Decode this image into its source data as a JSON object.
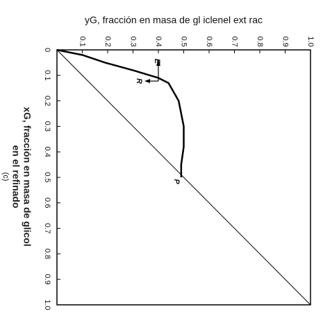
{
  "chart_data": {
    "type": "line",
    "xlabel": "yG, fracción en masa de gl iclenel ext rac",
    "ylabel": [
      "xG, fracción en masa de glicol",
      "en el refinado",
      "(c)"
    ],
    "xlim": [
      0,
      1
    ],
    "ylim": [
      0,
      1
    ],
    "xticks": [
      0.1,
      0.2,
      0.3,
      0.4,
      0.5,
      0.6,
      0.7,
      0.8,
      0.9,
      {
        "value": 1,
        "label": "1.0"
      }
    ],
    "yticks": [
      0,
      0.1,
      0.2,
      0.3,
      0.4,
      0.5,
      0.6,
      0.7,
      0.8,
      0.9,
      {
        "value": 1,
        "label": "1.0"
      }
    ],
    "series": [
      {
        "color": "#000000",
        "x": [
          0,
          0.1,
          0.19,
          0.3,
          0.4,
          0.44,
          0.48,
          0.5,
          0.5,
          0.49,
          0.49
        ],
        "values": [
          0,
          0.02,
          0.05,
          0.08,
          0.11,
          0.13,
          0.2,
          0.3,
          0.38,
          0.45,
          0.5
        ]
      },
      {
        "color": "#000000",
        "x": [
          0,
          1
        ],
        "values": [
          0,
          1
        ]
      }
    ],
    "annotations": [
      "E",
      "R",
      "P"
    ]
  }
}
